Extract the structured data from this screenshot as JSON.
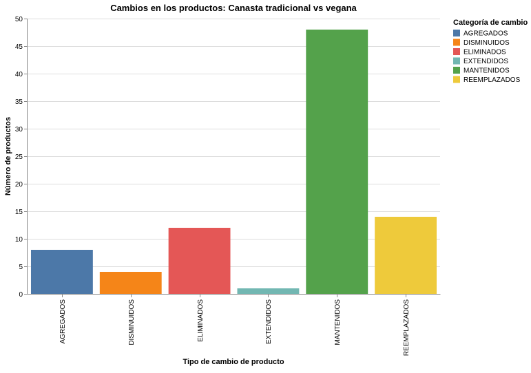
{
  "chart_data": {
    "type": "bar",
    "title": "Cambios en los productos: Canasta tradicional vs vegana",
    "xlabel": "Tipo de cambio de producto",
    "ylabel": "Número de productos",
    "categories": [
      "AGREGADOS",
      "DISMINUIDOS",
      "ELIMINADOS",
      "EXTENDIDOS",
      "MANTENIDOS",
      "REEMPLAZADOS"
    ],
    "values": [
      8,
      4,
      12,
      1,
      48,
      14
    ],
    "colors": [
      "#4c78a8",
      "#f58518",
      "#e45756",
      "#72b7b2",
      "#54a24b",
      "#eeca3b"
    ],
    "ylim": [
      0,
      50
    ],
    "yticks": [
      0,
      5,
      10,
      15,
      20,
      25,
      30,
      35,
      40,
      45,
      50
    ],
    "grid": true,
    "legend": {
      "title": "Categoría de cambio",
      "placement": "top-right",
      "entries": [
        "AGREGADOS",
        "DISMINUIDOS",
        "ELIMINADOS",
        "EXTENDIDOS",
        "MANTENIDOS",
        "REEMPLAZADOS"
      ]
    }
  }
}
